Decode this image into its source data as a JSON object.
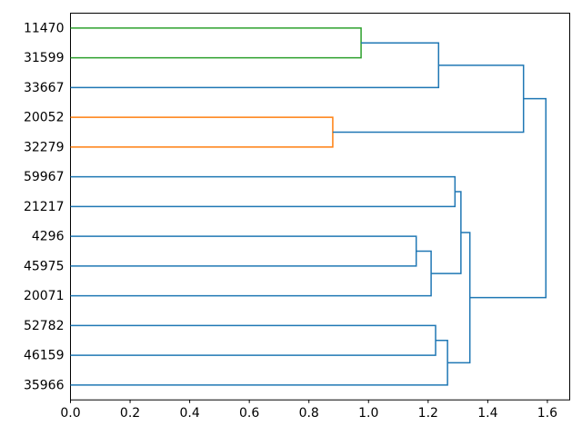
{
  "chart_data": {
    "type": "dendrogram",
    "orientation": "right",
    "title": "",
    "xlabel": "",
    "ylabel": "",
    "grid": false,
    "legend": null,
    "background": "#ffffff",
    "axis_color": "#000000",
    "colors": {
      "blue": "#1f77b4",
      "orange": "#ff7f0e",
      "green": "#2ca02c"
    },
    "leaves": [
      "11470",
      "31599",
      "33667",
      "20052",
      "32279",
      "59967",
      "21217",
      "4296",
      "45975",
      "20071",
      "52782",
      "46159",
      "35966"
    ],
    "links": [
      {
        "children": [
          "leaf:0",
          "leaf:1"
        ],
        "height": 0.975,
        "color": "green"
      },
      {
        "children": [
          "leaf:3",
          "leaf:4"
        ],
        "height": 0.88,
        "color": "orange"
      },
      {
        "children": [
          "link:0",
          "leaf:2"
        ],
        "height": 1.235,
        "color": "blue"
      },
      {
        "children": [
          "leaf:7",
          "leaf:8"
        ],
        "height": 1.16,
        "color": "blue"
      },
      {
        "children": [
          "link:3",
          "leaf:9"
        ],
        "height": 1.21,
        "color": "blue"
      },
      {
        "children": [
          "leaf:5",
          "leaf:6"
        ],
        "height": 1.29,
        "color": "blue"
      },
      {
        "children": [
          "link:5",
          "link:4"
        ],
        "height": 1.31,
        "color": "blue"
      },
      {
        "children": [
          "leaf:10",
          "leaf:11"
        ],
        "height": 1.225,
        "color": "blue"
      },
      {
        "children": [
          "link:7",
          "leaf:12"
        ],
        "height": 1.265,
        "color": "blue"
      },
      {
        "children": [
          "link:6",
          "link:8"
        ],
        "height": 1.34,
        "color": "blue"
      },
      {
        "children": [
          "link:2",
          "link:1"
        ],
        "height": 1.52,
        "color": "blue"
      },
      {
        "children": [
          "link:10",
          "link:9"
        ],
        "height": 1.595,
        "color": "blue"
      }
    ],
    "x_ticks": [
      {
        "value": 0.0,
        "label": "0.0"
      },
      {
        "value": 0.2,
        "label": "0.2"
      },
      {
        "value": 0.4,
        "label": "0.4"
      },
      {
        "value": 0.6,
        "label": "0.6"
      },
      {
        "value": 0.8,
        "label": "0.8"
      },
      {
        "value": 1.0,
        "label": "1.0"
      },
      {
        "value": 1.2,
        "label": "1.2"
      },
      {
        "value": 1.4,
        "label": "1.4"
      },
      {
        "value": 1.6,
        "label": "1.6"
      }
    ],
    "xlim": [
      0,
      1.675
    ]
  }
}
